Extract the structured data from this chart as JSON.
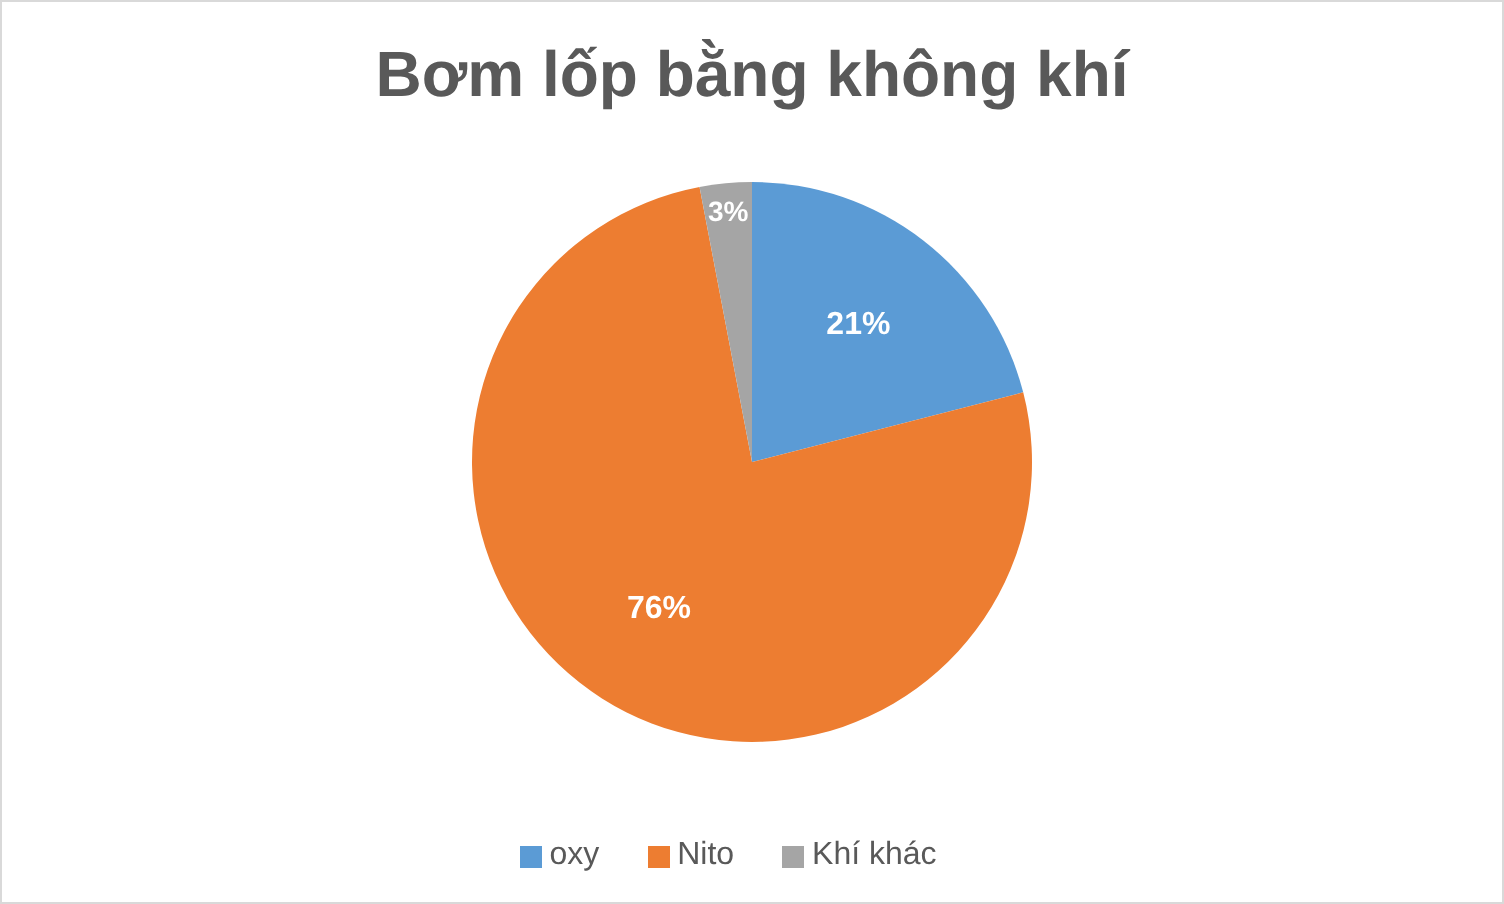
{
  "chart_data": {
    "type": "pie",
    "title": "Bơm lốp bằng không khí",
    "categories": [
      "oxy",
      "Nito",
      "Khí khác"
    ],
    "values": [
      21,
      76,
      3
    ],
    "colors": [
      "#5b9bd5",
      "#ed7d31",
      "#a5a5a5"
    ],
    "value_labels": [
      "21%",
      "76%",
      "3%"
    ],
    "legend": "bottom"
  }
}
